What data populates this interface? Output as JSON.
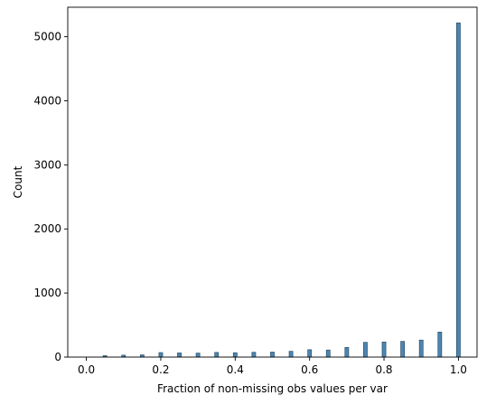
{
  "chart_data": {
    "type": "bar",
    "xlabel": "Fraction of non-missing obs values per var",
    "ylabel": "Count",
    "xlim": [
      -0.05,
      1.05
    ],
    "ylim": [
      0,
      5460
    ],
    "xticks": [
      0.0,
      0.2,
      0.4,
      0.6,
      0.8,
      1.0
    ],
    "xtick_labels": [
      "0.0",
      "0.2",
      "0.4",
      "0.6",
      "0.8",
      "1.0"
    ],
    "yticks": [
      0,
      1000,
      2000,
      3000,
      4000,
      5000
    ],
    "ytick_labels": [
      "0",
      "1000",
      "2000",
      "3000",
      "4000",
      "5000"
    ],
    "bin_width": 0.01,
    "bars": [
      {
        "x": 0.05,
        "value": 22
      },
      {
        "x": 0.1,
        "value": 30
      },
      {
        "x": 0.15,
        "value": 35
      },
      {
        "x": 0.2,
        "value": 70
      },
      {
        "x": 0.25,
        "value": 65
      },
      {
        "x": 0.3,
        "value": 62
      },
      {
        "x": 0.35,
        "value": 72
      },
      {
        "x": 0.4,
        "value": 68
      },
      {
        "x": 0.45,
        "value": 75
      },
      {
        "x": 0.5,
        "value": 78
      },
      {
        "x": 0.55,
        "value": 90
      },
      {
        "x": 0.6,
        "value": 115
      },
      {
        "x": 0.65,
        "value": 110
      },
      {
        "x": 0.7,
        "value": 150
      },
      {
        "x": 0.75,
        "value": 230
      },
      {
        "x": 0.8,
        "value": 235
      },
      {
        "x": 0.85,
        "value": 245
      },
      {
        "x": 0.9,
        "value": 265
      },
      {
        "x": 0.95,
        "value": 390
      },
      {
        "x": 1.0,
        "value": 5215
      }
    ],
    "bar_color": "#4c86b1",
    "bar_edge_color": "#2b4f6b"
  }
}
